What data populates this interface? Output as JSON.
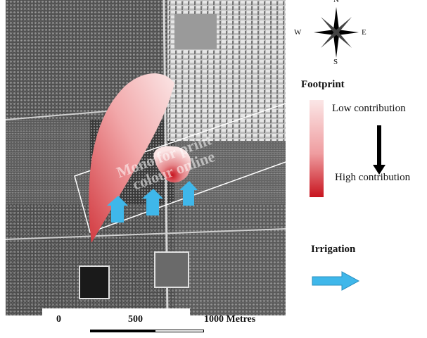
{
  "compass": {
    "north": "N",
    "south": "S",
    "east": "E",
    "west": "W"
  },
  "legend": {
    "footprint_title": "Footprint",
    "low_label": "Low contribution",
    "high_label": "High contribution",
    "irrigation_title": "Irrigation",
    "colors": {
      "low": "#fbe6e6",
      "high": "#c8141e",
      "irrigation": "#3fb7ea"
    }
  },
  "scalebar": {
    "ticks": [
      "0",
      "500",
      "1000 Metres"
    ]
  },
  "watermark": {
    "line1": "Mono for print",
    "line2": "colour online"
  }
}
